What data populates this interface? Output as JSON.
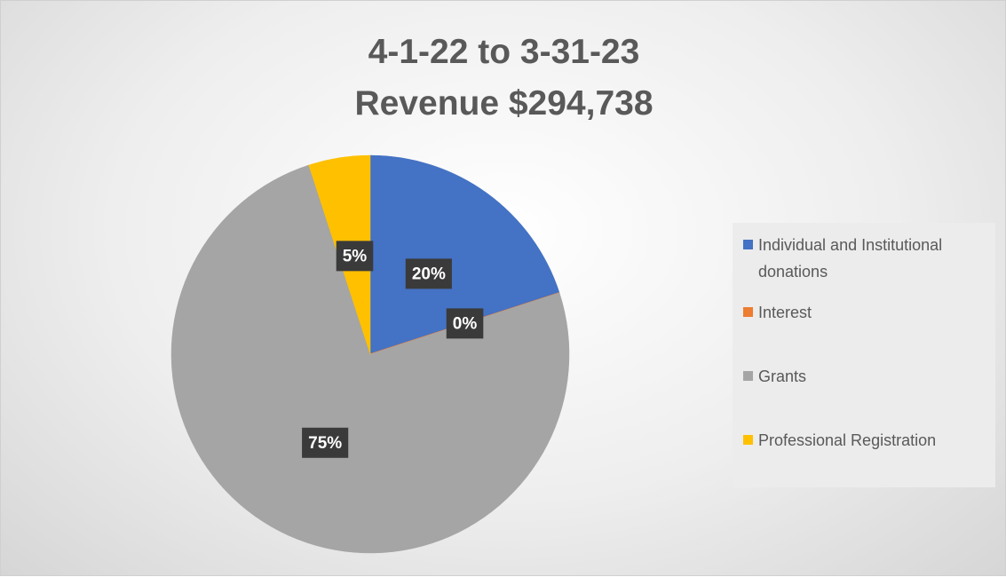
{
  "chart_data": {
    "type": "pie",
    "title": "4-1-22 to 3-31-23",
    "subtitle": "Revenue  $294,738",
    "categories": [
      "Individual and Institutional donations",
      "Interest",
      "Grants",
      "Professional Registration"
    ],
    "values": [
      20,
      0,
      75,
      5
    ],
    "value_labels": [
      "20%",
      "0%",
      "75%",
      "5%"
    ],
    "colors": [
      "#4472c4",
      "#ed7d31",
      "#a5a5a5",
      "#ffc000"
    ],
    "legend": "right"
  }
}
